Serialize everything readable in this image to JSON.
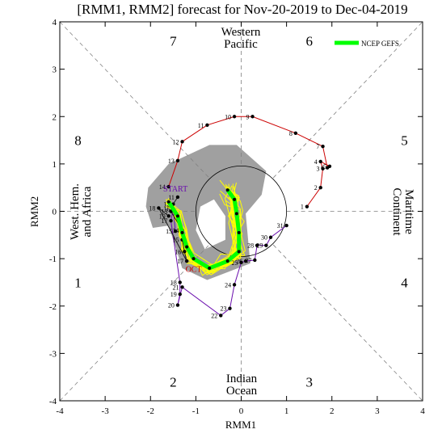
{
  "chart_data": {
    "type": "scatter",
    "title": "[RMM1, RMM2] forecast for Nov-20-2019 to Dec-04-2019",
    "xlabel": "RMM1",
    "ylabel": "RMM2",
    "xlim": [
      -4,
      4
    ],
    "ylim": [
      -4,
      4
    ],
    "xticks": [
      -4,
      -3,
      -2,
      -1,
      0,
      1,
      2,
      3,
      4
    ],
    "yticks": [
      -4,
      -3,
      -2,
      -1,
      0,
      1,
      2,
      3,
      4
    ],
    "grid": false,
    "unit_circle_radius": 1,
    "legend": {
      "placement": "top-right",
      "label": "NCEP GEFS",
      "color": "#00ff00"
    },
    "colors": {
      "obs_first": "#cc0000",
      "obs_second": "#6a0dad",
      "obs_third": "#1a1a1a",
      "ensemble": "#ffff00",
      "ensemble_mean": "#00ff00",
      "spread": "#a0a0a0",
      "guides": "#808080"
    },
    "phases": [
      {
        "label": "1",
        "x": -3.6,
        "y": -1.5
      },
      {
        "label": "2",
        "x": -1.5,
        "y": -3.6
      },
      {
        "label": "3",
        "x": 1.5,
        "y": -3.6
      },
      {
        "label": "4",
        "x": 3.6,
        "y": -1.5
      },
      {
        "label": "5",
        "x": 3.6,
        "y": 1.5
      },
      {
        "label": "6",
        "x": 1.5,
        "y": 3.6
      },
      {
        "label": "7",
        "x": -1.5,
        "y": 3.6
      },
      {
        "label": "8",
        "x": -3.6,
        "y": 1.5
      }
    ],
    "regions": {
      "top": [
        "Western",
        "Pacific"
      ],
      "bottom": [
        "Indian",
        "Ocean"
      ],
      "left": [
        "West. Hem.",
        "and Africa"
      ],
      "right": [
        "Maritime",
        "Continent"
      ]
    },
    "annotations": [
      {
        "text": "START",
        "x": -1.45,
        "y": 0.42,
        "color": "#6a0dad"
      },
      {
        "text": "OCT",
        "x": -1.05,
        "y": -1.28,
        "color": "#cc0000"
      }
    ],
    "series": [
      {
        "color": "#cc0000",
        "points": [
          {
            "label": "1",
            "x": 1.45,
            "y": 0.1
          },
          {
            "label": "2",
            "x": 1.75,
            "y": 0.5
          },
          {
            "label": "3",
            "x": 1.8,
            "y": 0.9
          },
          {
            "label": "4",
            "x": 1.75,
            "y": 1.05
          },
          {
            "label": "5",
            "x": 1.95,
            "y": 0.95
          },
          {
            "label": "6",
            "x": 1.9,
            "y": 0.92
          },
          {
            "label": "7",
            "x": 1.8,
            "y": 1.37
          },
          {
            "label": "8",
            "x": 1.2,
            "y": 1.65
          },
          {
            "label": "9",
            "x": 0.25,
            "y": 2.0
          },
          {
            "label": "10",
            "x": -0.15,
            "y": 2.0
          },
          {
            "label": "11",
            "x": -0.75,
            "y": 1.82
          },
          {
            "label": "12",
            "x": -1.3,
            "y": 1.47
          },
          {
            "label": "13",
            "x": -1.4,
            "y": 1.07
          },
          {
            "label": "14",
            "x": -1.6,
            "y": 0.52
          }
        ]
      },
      {
        "color": "#6a0dad",
        "points": [
          {
            "label": "15",
            "x": -1.45,
            "y": -0.42
          },
          {
            "label": "16",
            "x": -1.5,
            "y": 0.05
          },
          {
            "label": "17",
            "x": -1.55,
            "y": -0.2
          },
          {
            "label": "18",
            "x": -1.35,
            "y": -1.5
          },
          {
            "label": "19",
            "x": -1.35,
            "y": -1.75
          },
          {
            "label": "20",
            "x": -1.4,
            "y": -1.98
          },
          {
            "label": "21",
            "x": -1.3,
            "y": -1.6
          },
          {
            "label": "22",
            "x": -0.45,
            "y": -2.2
          },
          {
            "label": "23",
            "x": -0.25,
            "y": -2.05
          },
          {
            "label": "24",
            "x": -0.15,
            "y": -1.55
          },
          {
            "label": "25",
            "x": 0.0,
            "y": -1.08
          },
          {
            "label": "26",
            "x": 0.1,
            "y": -1.05
          },
          {
            "label": "27",
            "x": 0.3,
            "y": -1.03
          },
          {
            "label": "28",
            "x": 0.35,
            "y": -0.72
          },
          {
            "label": "29",
            "x": 0.55,
            "y": -0.72
          },
          {
            "label": "30",
            "x": 0.65,
            "y": -0.55
          },
          {
            "label": "31",
            "x": 1.0,
            "y": -0.3
          }
        ]
      },
      {
        "color": "#1a1a1a",
        "points": [
          {
            "label": "11",
            "x": -1.4,
            "y": 0.3
          },
          {
            "label": "12",
            "x": -1.5,
            "y": 0.15
          },
          {
            "label": "13",
            "x": -1.55,
            "y": 0.0
          },
          {
            "label": "14",
            "x": -1.3,
            "y": -0.4
          },
          {
            "label": "15",
            "x": -1.3,
            "y": -0.6
          },
          {
            "label": "16",
            "x": -1.25,
            "y": -0.85
          },
          {
            "label": "17",
            "x": -1.2,
            "y": -1.05
          },
          {
            "label": "18",
            "x": -1.82,
            "y": 0.07
          },
          {
            "label": "19",
            "x": -1.6,
            "y": -0.1
          }
        ]
      },
      {
        "name": "NCEP GEFS",
        "color": "#00ff00",
        "points": [
          {
            "x": -1.6,
            "y": 0.2
          },
          {
            "x": -1.4,
            "y": -0.1
          },
          {
            "x": -1.3,
            "y": -0.45
          },
          {
            "x": -1.2,
            "y": -0.75
          },
          {
            "x": -1.05,
            "y": -1.0
          },
          {
            "x": -0.7,
            "y": -1.2
          },
          {
            "x": -0.3,
            "y": -1.05
          },
          {
            "x": -0.05,
            "y": -0.85
          },
          {
            "x": -0.05,
            "y": -0.45
          },
          {
            "x": -0.1,
            "y": -0.05
          },
          {
            "x": -0.15,
            "y": 0.25
          },
          {
            "x": -0.3,
            "y": 0.45
          }
        ]
      }
    ]
  }
}
